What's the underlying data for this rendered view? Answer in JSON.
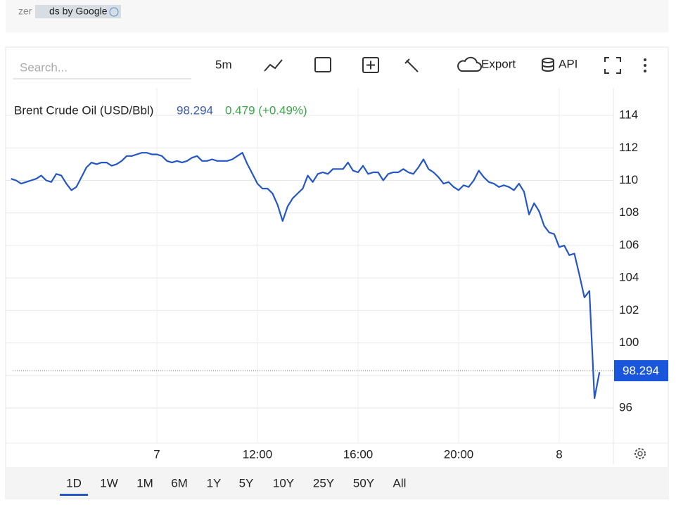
{
  "ad_bar": {
    "prefix": "zer",
    "label": "ds by Google"
  },
  "toolbar": {
    "search_placeholder": "Search...",
    "interval": "5m",
    "export": "Export",
    "api": "API"
  },
  "ranges": {
    "items": [
      "1D",
      "1W",
      "1M",
      "6M",
      "1Y",
      "5Y",
      "10Y",
      "25Y",
      "50Y",
      "All"
    ],
    "selected": 0
  },
  "chart_data": {
    "type": "line",
    "title": "Brent Crude Oil (USD/Bbl)",
    "last_value": 98.294,
    "change": "0.479 (+0.49%)",
    "ylim": [
      93.84,
      115.69
    ],
    "yticks": [
      96,
      98,
      100,
      102,
      104,
      106,
      108,
      110,
      112,
      114
    ],
    "grid": true,
    "categories": [
      null,
      null,
      null,
      null,
      null,
      null,
      null,
      null,
      null,
      null,
      null,
      null,
      null,
      null,
      null,
      null,
      null,
      null,
      null,
      null,
      null,
      null,
      null,
      null,
      null,
      null,
      null,
      null,
      null,
      "7",
      null,
      null,
      null,
      null,
      null,
      null,
      null,
      null,
      null,
      null,
      null,
      null,
      null,
      null,
      null,
      null,
      null,
      null,
      null,
      "12:00",
      null,
      null,
      null,
      null,
      null,
      null,
      null,
      null,
      null,
      null,
      null,
      null,
      null,
      null,
      null,
      null,
      null,
      null,
      null,
      "16:00",
      null,
      null,
      null,
      null,
      null,
      null,
      null,
      null,
      null,
      null,
      null,
      null,
      null,
      null,
      null,
      null,
      null,
      null,
      null,
      "20:00",
      null,
      null,
      null,
      null,
      null,
      null,
      null,
      null,
      null,
      null,
      null,
      null,
      null,
      null,
      null,
      null,
      null,
      null,
      null,
      "8",
      null,
      null,
      null,
      null,
      null,
      null,
      null,
      null
    ],
    "series": [
      {
        "name": "Brent Crude Oil (USD/Bbl)",
        "color": "#2456c4",
        "values": [
          110.1,
          110.0,
          109.8,
          109.9,
          110.0,
          110.1,
          110.3,
          110.0,
          109.9,
          110.4,
          110.3,
          109.8,
          109.4,
          109.6,
          110.2,
          110.8,
          111.1,
          111.0,
          111.1,
          111.1,
          110.9,
          111.0,
          111.2,
          111.5,
          111.5,
          111.6,
          111.7,
          111.7,
          111.6,
          111.6,
          111.5,
          111.2,
          111.1,
          111.2,
          111.1,
          111.2,
          111.4,
          111.5,
          111.2,
          111.2,
          111.3,
          111.2,
          111.2,
          111.2,
          111.3,
          111.5,
          111.7,
          111.0,
          110.4,
          109.8,
          109.5,
          109.5,
          109.2,
          108.5,
          107.5,
          108.4,
          108.9,
          109.2,
          109.5,
          110.3,
          109.9,
          110.4,
          110.5,
          110.4,
          110.7,
          110.7,
          110.7,
          111.1,
          110.6,
          110.5,
          110.9,
          110.4,
          110.5,
          110.5,
          110.0,
          110.4,
          110.5,
          110.5,
          110.7,
          110.5,
          110.4,
          110.8,
          111.3,
          110.7,
          110.5,
          110.2,
          109.8,
          109.9,
          109.6,
          109.4,
          109.7,
          109.6,
          110.0,
          110.6,
          110.2,
          109.9,
          109.8,
          109.6,
          109.7,
          109.6,
          109.4,
          109.8,
          109.3,
          107.9,
          108.6,
          108.1,
          107.2,
          106.8,
          106.7,
          105.9,
          106.0,
          105.4,
          105.5,
          104.2,
          102.8,
          103.2,
          96.6,
          98.2
        ]
      }
    ]
  }
}
